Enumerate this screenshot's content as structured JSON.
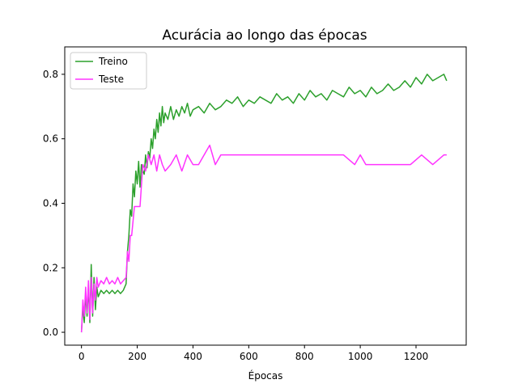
{
  "chart_data": {
    "type": "line",
    "title": "Acurácia ao longo das épocas",
    "xlabel": "Épocas",
    "ylabel": "",
    "xlim": [
      -60,
      1380
    ],
    "ylim": [
      -0.04,
      0.885
    ],
    "xticks": [
      0,
      200,
      400,
      600,
      800,
      1000,
      1200
    ],
    "yticks": [
      0.0,
      0.2,
      0.4,
      0.6,
      0.8
    ],
    "xtick_labels": [
      "0",
      "200",
      "400",
      "600",
      "800",
      "1000",
      "1200"
    ],
    "ytick_labels": [
      "0.0",
      "0.2",
      "0.4",
      "0.6",
      "0.8"
    ],
    "legend_position": "top-left",
    "series": [
      {
        "name": "Treino",
        "color": "#2ca02c",
        "x": [
          0,
          5,
          10,
          15,
          20,
          25,
          30,
          35,
          40,
          45,
          50,
          55,
          60,
          70,
          80,
          90,
          100,
          110,
          120,
          130,
          140,
          150,
          160,
          165,
          170,
          175,
          180,
          185,
          190,
          195,
          200,
          205,
          210,
          215,
          220,
          225,
          230,
          235,
          240,
          245,
          250,
          255,
          260,
          265,
          270,
          275,
          280,
          285,
          290,
          295,
          300,
          310,
          320,
          330,
          340,
          350,
          360,
          370,
          380,
          390,
          400,
          420,
          440,
          460,
          480,
          500,
          520,
          540,
          560,
          580,
          600,
          620,
          640,
          660,
          680,
          700,
          720,
          740,
          760,
          780,
          800,
          820,
          840,
          860,
          880,
          900,
          920,
          940,
          960,
          980,
          1000,
          1020,
          1040,
          1060,
          1080,
          1100,
          1120,
          1140,
          1160,
          1180,
          1200,
          1220,
          1240,
          1260,
          1280,
          1300,
          1310
        ],
        "y": [
          0.0,
          0.08,
          0.03,
          0.12,
          0.05,
          0.14,
          0.03,
          0.21,
          0.05,
          0.17,
          0.07,
          0.14,
          0.11,
          0.13,
          0.12,
          0.13,
          0.12,
          0.13,
          0.12,
          0.13,
          0.12,
          0.13,
          0.15,
          0.25,
          0.3,
          0.38,
          0.36,
          0.46,
          0.42,
          0.5,
          0.46,
          0.53,
          0.45,
          0.52,
          0.5,
          0.49,
          0.55,
          0.51,
          0.56,
          0.54,
          0.6,
          0.57,
          0.63,
          0.6,
          0.66,
          0.62,
          0.68,
          0.64,
          0.7,
          0.65,
          0.68,
          0.66,
          0.7,
          0.66,
          0.69,
          0.67,
          0.7,
          0.68,
          0.71,
          0.67,
          0.69,
          0.7,
          0.68,
          0.71,
          0.69,
          0.7,
          0.72,
          0.71,
          0.73,
          0.7,
          0.72,
          0.71,
          0.73,
          0.72,
          0.71,
          0.74,
          0.72,
          0.73,
          0.71,
          0.74,
          0.72,
          0.75,
          0.73,
          0.74,
          0.72,
          0.75,
          0.74,
          0.73,
          0.76,
          0.74,
          0.75,
          0.73,
          0.76,
          0.74,
          0.75,
          0.77,
          0.75,
          0.76,
          0.78,
          0.76,
          0.79,
          0.77,
          0.8,
          0.78,
          0.79,
          0.8,
          0.78
        ]
      },
      {
        "name": "Teste",
        "color": "#ff33ff",
        "x": [
          0,
          5,
          10,
          15,
          20,
          25,
          30,
          35,
          40,
          45,
          50,
          55,
          60,
          70,
          80,
          90,
          100,
          110,
          120,
          130,
          140,
          150,
          160,
          165,
          170,
          175,
          180,
          190,
          200,
          210,
          220,
          230,
          240,
          250,
          260,
          270,
          280,
          290,
          300,
          320,
          340,
          360,
          380,
          400,
          420,
          440,
          460,
          480,
          500,
          540,
          580,
          620,
          660,
          700,
          740,
          780,
          820,
          860,
          900,
          940,
          980,
          1000,
          1020,
          1060,
          1100,
          1140,
          1180,
          1220,
          1260,
          1300,
          1310
        ],
        "y": [
          0.0,
          0.1,
          0.05,
          0.14,
          0.06,
          0.16,
          0.04,
          0.17,
          0.06,
          0.15,
          0.1,
          0.17,
          0.14,
          0.16,
          0.15,
          0.17,
          0.15,
          0.16,
          0.15,
          0.17,
          0.15,
          0.16,
          0.17,
          0.25,
          0.22,
          0.3,
          0.3,
          0.39,
          0.39,
          0.39,
          0.52,
          0.5,
          0.55,
          0.52,
          0.55,
          0.5,
          0.55,
          0.52,
          0.5,
          0.52,
          0.55,
          0.5,
          0.55,
          0.52,
          0.52,
          0.55,
          0.58,
          0.52,
          0.55,
          0.55,
          0.55,
          0.55,
          0.55,
          0.55,
          0.55,
          0.55,
          0.55,
          0.55,
          0.55,
          0.55,
          0.52,
          0.55,
          0.52,
          0.52,
          0.52,
          0.52,
          0.52,
          0.55,
          0.52,
          0.55,
          0.55
        ]
      }
    ]
  }
}
